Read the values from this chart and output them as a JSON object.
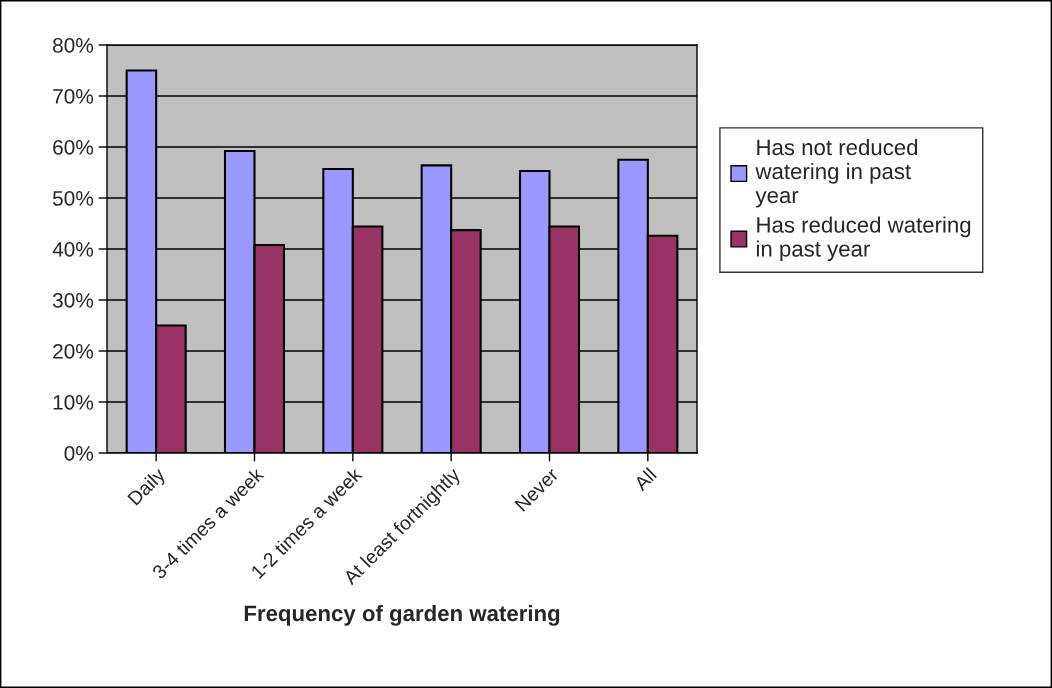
{
  "chart_data": {
    "type": "bar",
    "xlabel": "Frequency of garden watering",
    "categories": [
      "Daily",
      "3-4 times a week",
      "1-2 times a week",
      "At least fortnightly",
      "Never",
      "All"
    ],
    "series": [
      {
        "name": "Has not reduced watering in past year",
        "color": "#9999ff",
        "values": [
          75,
          59.2,
          55.7,
          56.4,
          55.3,
          57.5
        ]
      },
      {
        "name": "Has reduced watering in past year",
        "color": "#993366",
        "values": [
          25,
          40.8,
          44.4,
          43.7,
          44.4,
          42.6
        ]
      }
    ],
    "ylim": [
      0,
      80
    ],
    "yticks": [
      {
        "value": 0,
        "label": "0%"
      },
      {
        "value": 10,
        "label": "10%"
      },
      {
        "value": 20,
        "label": "20%"
      },
      {
        "value": 30,
        "label": "30%"
      },
      {
        "value": 40,
        "label": "40%"
      },
      {
        "value": 50,
        "label": "50%"
      },
      {
        "value": 60,
        "label": "60%"
      },
      {
        "value": 70,
        "label": "70%"
      },
      {
        "value": 80,
        "label": "80%"
      }
    ],
    "grid": "y",
    "legend": "right"
  }
}
